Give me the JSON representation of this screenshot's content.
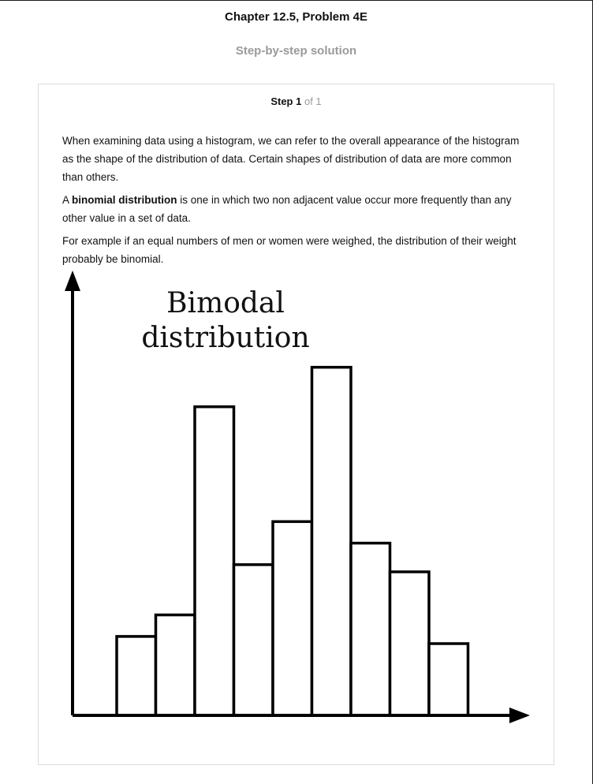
{
  "header": {
    "title": "Chapter 12.5, Problem 4E",
    "subtitle": "Step-by-step solution"
  },
  "step": {
    "label": "Step 1",
    "of_text": "of 1"
  },
  "content": {
    "p1": "When examining data using a histogram, we can refer to the overall appearance of the histogram as the shape of the distribution of data. Certain shapes of distribution of data are more common than others.",
    "p2_prefix": "A ",
    "p2_bold": "binomial distribution",
    "p2_suffix": " is one in which two non adjacent value occur more frequently than any other value in a set of data.",
    "p3": "For example if an equal numbers of men or women were weighed, the distribution of their weight probably be binomial."
  },
  "chart_data": {
    "type": "bar",
    "title_line1": "Bimodal",
    "title_line2": "distribution",
    "xlabel": "",
    "ylabel": "",
    "values": [
      2.2,
      2.8,
      8.6,
      4.2,
      5.4,
      9.7,
      4.8,
      4.0,
      2.0
    ],
    "ylim": [
      0,
      12
    ],
    "grid": false,
    "legend": "none",
    "colors": {
      "bar_fill": "#ffffff",
      "bar_stroke": "#000000",
      "axis": "#000000"
    }
  }
}
